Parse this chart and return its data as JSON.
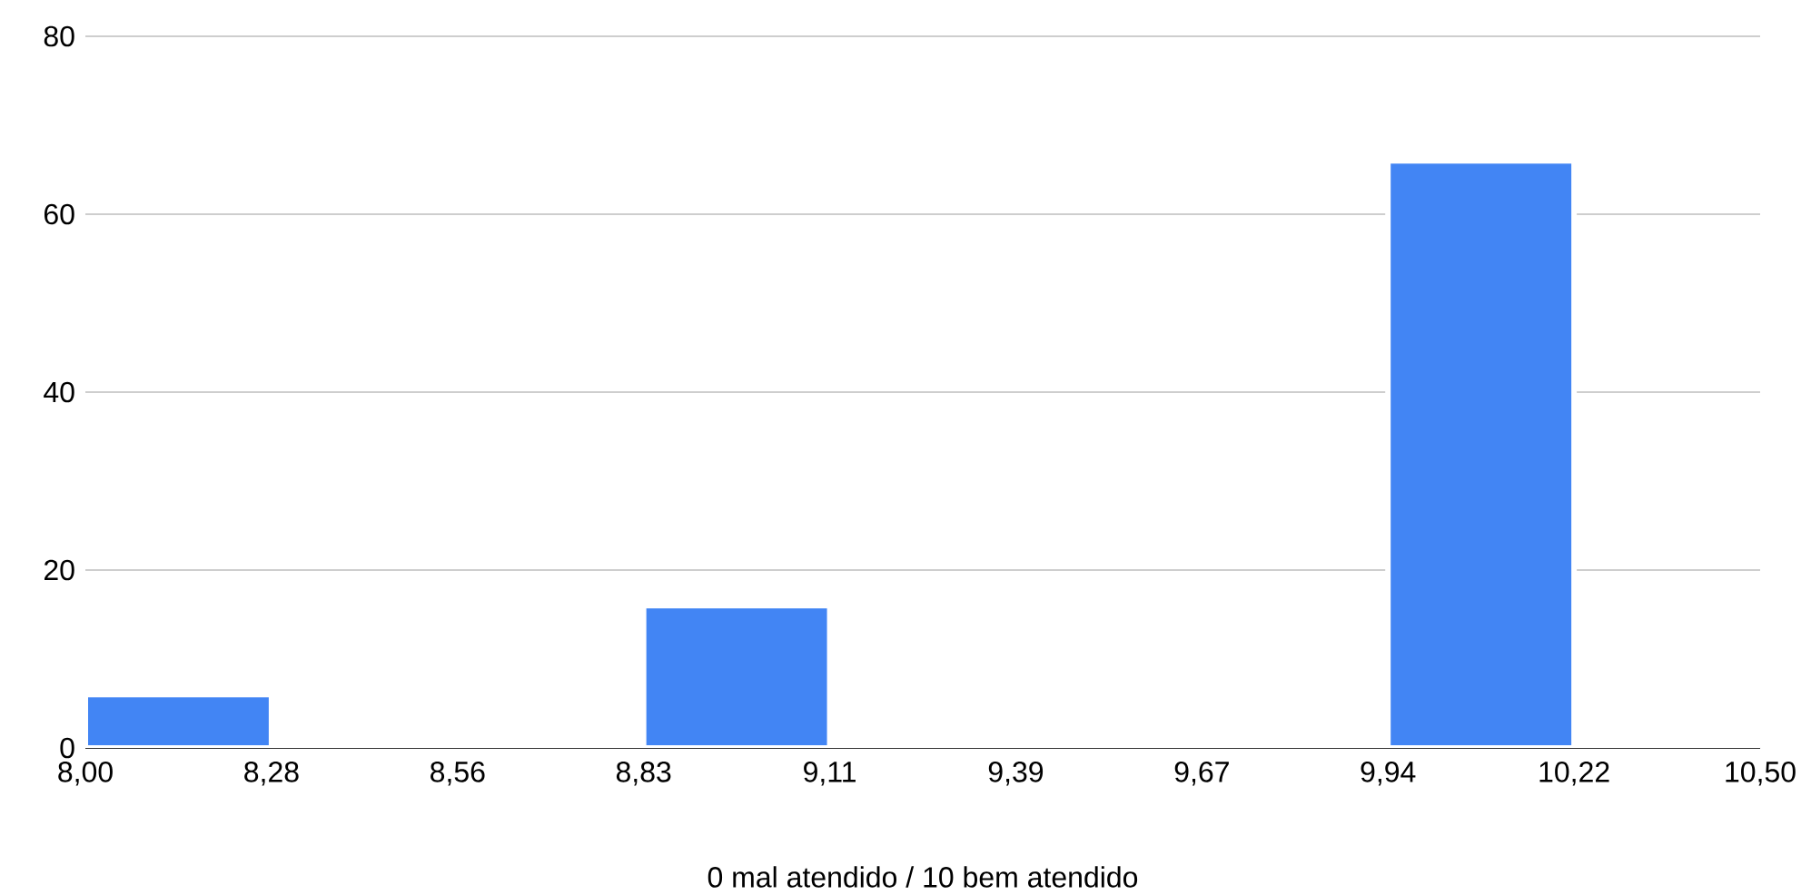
{
  "chart_data": {
    "type": "histogram",
    "xlabel": "0 mal atendido / 10 bem atendido",
    "bins": [
      8.0,
      8.2778,
      8.5556,
      8.8333,
      9.1111,
      9.3889,
      9.6667,
      9.9444,
      10.2222,
      10.5
    ],
    "values": [
      6,
      0,
      0,
      16,
      0,
      0,
      0,
      66,
      0
    ],
    "color": "#4285f4",
    "xlim": [
      8.0,
      10.5
    ],
    "xticks": [
      {
        "value": 8.0,
        "label": "8,00"
      },
      {
        "value": 8.2778,
        "label": "8,28"
      },
      {
        "value": 8.5556,
        "label": "8,56"
      },
      {
        "value": 8.8333,
        "label": "8,83"
      },
      {
        "value": 9.1111,
        "label": "9,11"
      },
      {
        "value": 9.3889,
        "label": "9,39"
      },
      {
        "value": 9.6667,
        "label": "9,67"
      },
      {
        "value": 9.9444,
        "label": "9,94"
      },
      {
        "value": 10.2222,
        "label": "10,22"
      },
      {
        "value": 10.5,
        "label": "10,50"
      }
    ],
    "ylim": [
      0,
      80
    ],
    "yticks": [
      0,
      20,
      40,
      60,
      80
    ],
    "grid": "y"
  }
}
